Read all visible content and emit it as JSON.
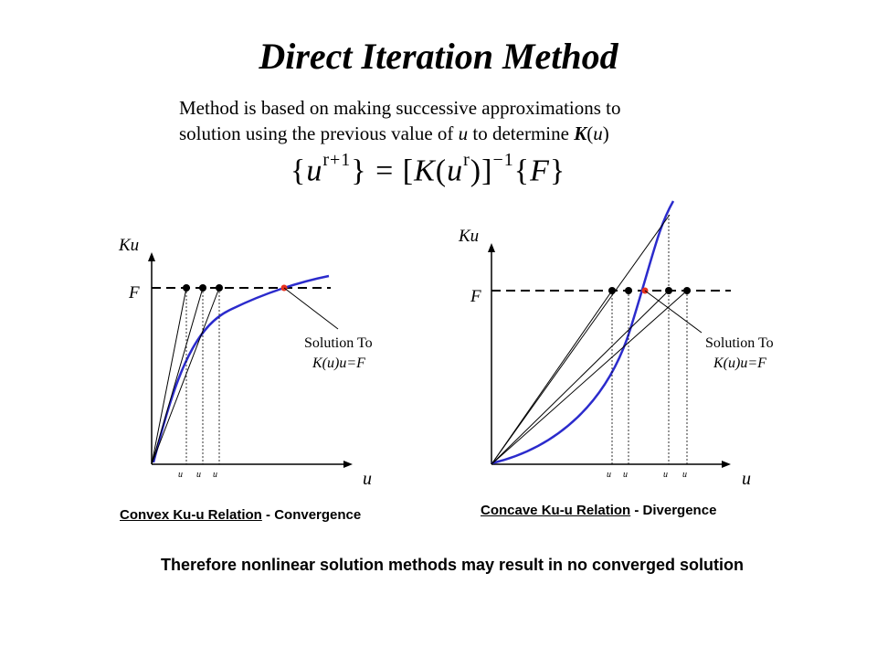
{
  "title": "Direct Iteration Method",
  "intro": {
    "line1": "Method is based on making successive approximations to",
    "line2_prefix": "solution using the previous value of ",
    "line2_u": "u",
    "line2_mid": " to determine ",
    "line2_K": "K",
    "line2_paren_u": "u"
  },
  "equation": {
    "lhs_u": "u",
    "lhs_sup": "r+1",
    "rhs_K": "K",
    "rhs_u": "u",
    "rhs_sup_r": "r",
    "rhs_inv": "−1",
    "rhs_F": "F"
  },
  "left_plot": {
    "y_label": "Ku",
    "x_label": "u",
    "F_label": "F",
    "solution_line1": "Solution To",
    "solution_line2": "K(u)u=F",
    "tick_labels": [
      "u",
      "u",
      "u"
    ],
    "caption_relation": "Convex Ku-u Relation",
    "caption_sep": " - ",
    "caption_result": "Convergence"
  },
  "right_plot": {
    "y_label": "Ku",
    "x_label": "u",
    "F_label": "F",
    "solution_line1": "Solution To",
    "solution_line2": "K(u)u=F",
    "tick_labels": [
      "u",
      "u",
      "u",
      "u"
    ],
    "caption_relation": "Concave Ku-u Relation",
    "caption_sep": " - ",
    "caption_result": "Divergence"
  },
  "conclusion": "Therefore nonlinear solution methods may result in no converged solution",
  "colors": {
    "curve": "#2b2bcc",
    "solution_point": "#e8321e",
    "lines": "#000000"
  }
}
